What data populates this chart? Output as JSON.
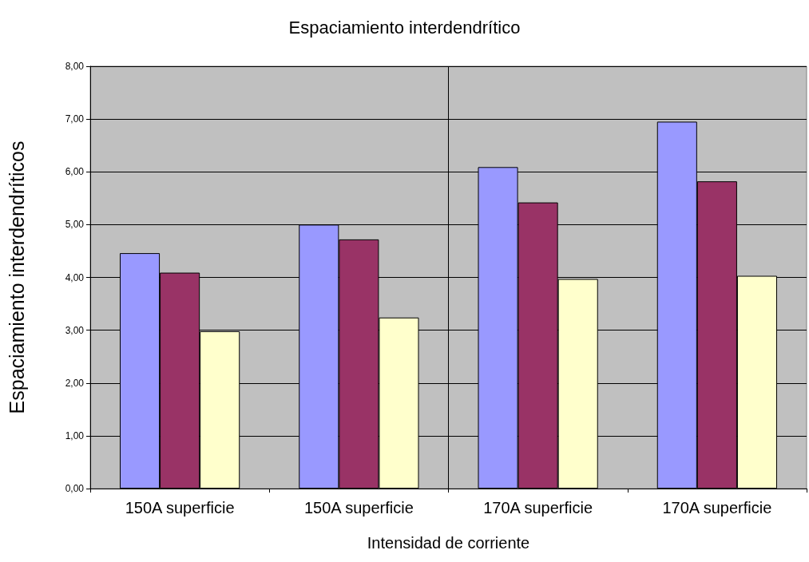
{
  "chart_data": {
    "type": "bar",
    "title": "Espaciamiento interdendrítico",
    "xlabel": "Intensidad de corriente",
    "ylabel": "Espaciamiento interdendríticos",
    "categories": [
      "150A superficie",
      "150A superficie",
      "170A superficie",
      "170A superficie"
    ],
    "series": [
      {
        "color": "#9999ff",
        "values": [
          4.46,
          5.0,
          6.09,
          6.95
        ]
      },
      {
        "color": "#993366",
        "values": [
          4.09,
          4.72,
          5.42,
          5.82
        ]
      },
      {
        "color": "#ffffcc",
        "values": [
          2.98,
          3.24,
          3.97,
          4.03
        ]
      }
    ],
    "ylim": [
      0,
      8
    ],
    "yticks": [
      {
        "value": 0,
        "label": "0,00"
      },
      {
        "value": 1,
        "label": "1,00"
      },
      {
        "value": 2,
        "label": "2,00"
      },
      {
        "value": 3,
        "label": "3,00"
      },
      {
        "value": 4,
        "label": "4,00"
      },
      {
        "value": 5,
        "label": "5,00"
      },
      {
        "value": 6,
        "label": "6,00"
      },
      {
        "value": 7,
        "label": "7,00"
      },
      {
        "value": 8,
        "label": "8,00"
      }
    ],
    "grid": "y"
  }
}
